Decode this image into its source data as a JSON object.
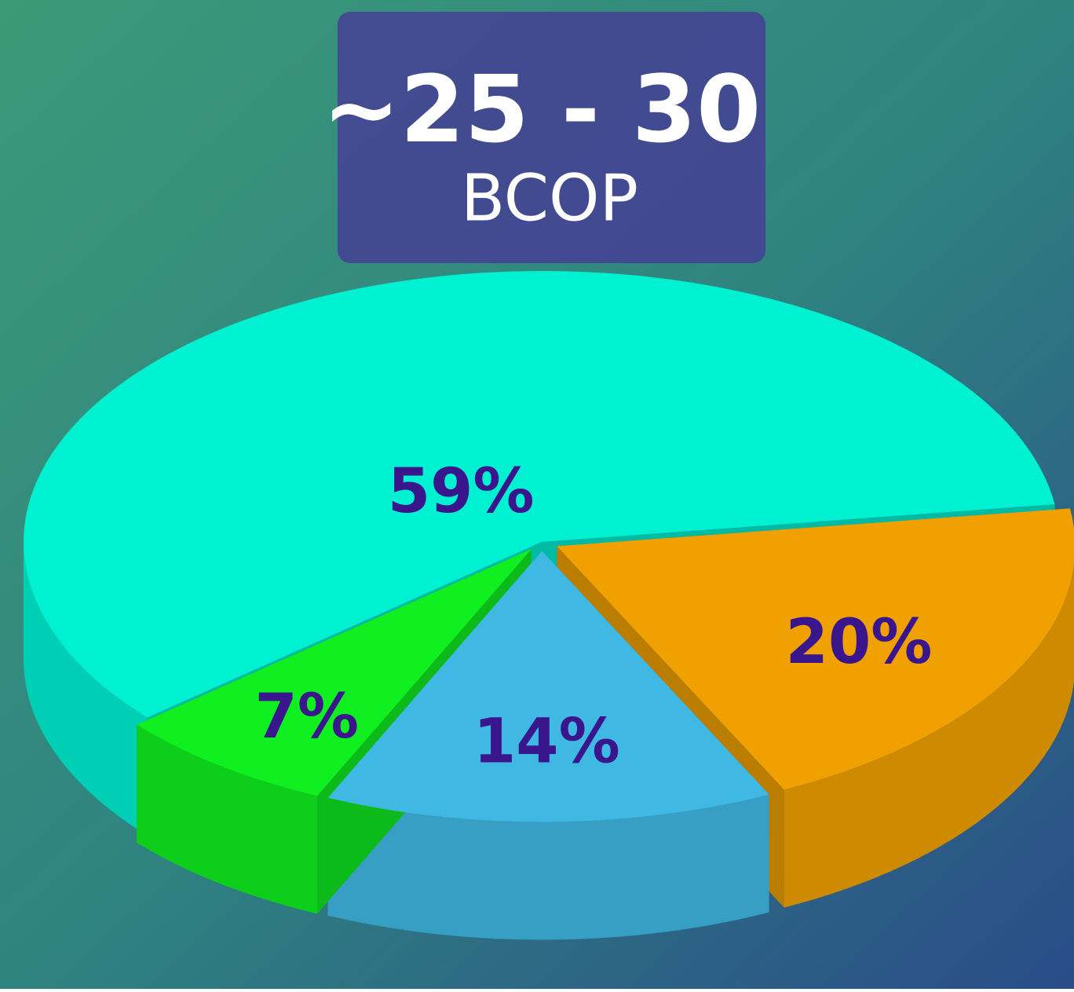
{
  "chart_data": {
    "type": "pie",
    "title": "~25 - 30",
    "subtitle": "BCOP",
    "values": [
      59,
      20,
      14,
      7
    ],
    "value_labels": [
      "59%",
      "20%",
      "14%",
      "7%"
    ],
    "colors": [
      "#00f0d2",
      "#f0a000",
      "#40b8e4",
      "#10f020"
    ]
  }
}
